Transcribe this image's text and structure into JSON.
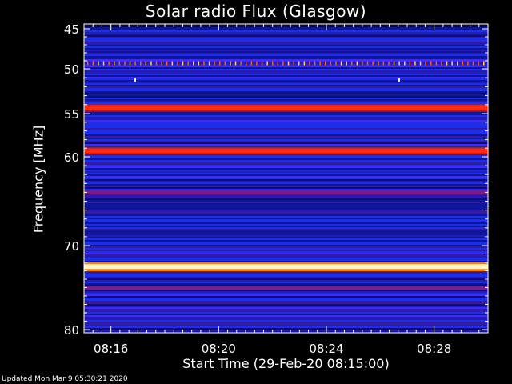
{
  "chart_data": {
    "type": "heatmap",
    "title": "Solar radio Flux (Glasgow)",
    "ylabel": "Frequency [MHz]",
    "xlabel": "Start Time (29-Feb-20 08:15:00)",
    "y_ticks": [
      "45",
      "50",
      "55",
      "60",
      "70",
      "80"
    ],
    "y_tick_values": [
      45,
      50,
      55,
      60,
      70,
      80
    ],
    "ylim": [
      44.5,
      80
    ],
    "x_ticks": [
      "08:16",
      "08:20",
      "08:24",
      "08:28"
    ],
    "x_tick_minutes": [
      16,
      20,
      24,
      28
    ],
    "xlim_minutes": [
      15,
      30
    ],
    "emission_bands": [
      {
        "freq_mhz": 49.3,
        "level": "spikes"
      },
      {
        "freq_mhz": 54.3,
        "level": "high"
      },
      {
        "freq_mhz": 59.3,
        "level": "high"
      },
      {
        "freq_mhz": 64.0,
        "level": "medium"
      },
      {
        "freq_mhz": 72.5,
        "level": "max"
      },
      {
        "freq_mhz": 75.0,
        "level": "medium"
      }
    ],
    "colors": {
      "background": "#000000",
      "low": "#1a2cf0",
      "medium": "#8a1a8a",
      "high": "#ff2a14",
      "max": "#fff6c8",
      "axis": "#ffffff"
    }
  },
  "footer": {
    "updated": "Updated Mon Mar  9 05:30:21 2020"
  }
}
